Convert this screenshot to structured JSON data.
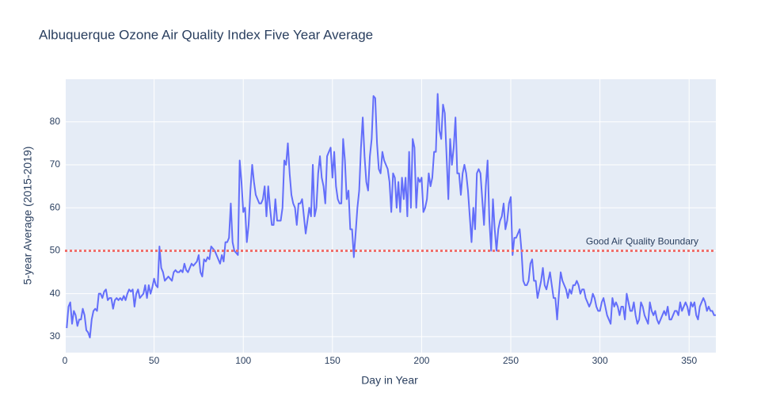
{
  "chart_data": {
    "type": "line",
    "title": "Albuquerque Ozone Air Quality Index Five Year Average",
    "x_label": "Day in Year",
    "y_label": "5-year Average (2015-2019)",
    "color": "#636efa",
    "grid": true,
    "xlim": [
      0,
      365
    ],
    "ylim": [
      26.3,
      89.9
    ],
    "xticks": [
      0,
      50,
      100,
      150,
      200,
      250,
      300,
      350
    ],
    "yticks": [
      30,
      40,
      50,
      60,
      70,
      80
    ],
    "threshold": {
      "value": 50,
      "label": "Good Air Quality Boundary",
      "color": "#ef6f6c"
    },
    "x": [
      1,
      2,
      3,
      4,
      5,
      6,
      7,
      8,
      9,
      10,
      11,
      12,
      13,
      14,
      15,
      16,
      17,
      18,
      19,
      20,
      21,
      22,
      23,
      24,
      25,
      26,
      27,
      28,
      29,
      30,
      31,
      32,
      33,
      34,
      35,
      36,
      37,
      38,
      39,
      40,
      41,
      42,
      43,
      44,
      45,
      46,
      47,
      48,
      49,
      50,
      51,
      52,
      53,
      54,
      55,
      56,
      57,
      58,
      59,
      60,
      61,
      62,
      63,
      64,
      65,
      66,
      67,
      68,
      69,
      70,
      71,
      72,
      73,
      74,
      75,
      76,
      77,
      78,
      79,
      80,
      81,
      82,
      83,
      84,
      85,
      86,
      87,
      88,
      89,
      90,
      91,
      92,
      93,
      94,
      95,
      96,
      97,
      98,
      99,
      100,
      101,
      102,
      103,
      104,
      105,
      106,
      107,
      108,
      109,
      110,
      111,
      112,
      113,
      114,
      115,
      116,
      117,
      118,
      119,
      120,
      121,
      122,
      123,
      124,
      125,
      126,
      127,
      128,
      129,
      130,
      131,
      132,
      133,
      134,
      135,
      136,
      137,
      138,
      139,
      140,
      141,
      142,
      143,
      144,
      145,
      146,
      147,
      148,
      149,
      150,
      151,
      152,
      153,
      154,
      155,
      156,
      157,
      158,
      159,
      160,
      161,
      162,
      163,
      164,
      165,
      166,
      167,
      168,
      169,
      170,
      171,
      172,
      173,
      174,
      175,
      176,
      177,
      178,
      179,
      180,
      181,
      182,
      183,
      184,
      185,
      186,
      187,
      188,
      189,
      190,
      191,
      192,
      193,
      194,
      195,
      196,
      197,
      198,
      199,
      200,
      201,
      202,
      203,
      204,
      205,
      206,
      207,
      208,
      209,
      210,
      211,
      212,
      213,
      214,
      215,
      216,
      217,
      218,
      219,
      220,
      221,
      222,
      223,
      224,
      225,
      226,
      227,
      228,
      229,
      230,
      231,
      232,
      233,
      234,
      235,
      236,
      237,
      238,
      239,
      240,
      241,
      242,
      243,
      244,
      245,
      246,
      247,
      248,
      249,
      250,
      251,
      252,
      253,
      254,
      255,
      256,
      257,
      258,
      259,
      260,
      261,
      262,
      263,
      264,
      265,
      266,
      267,
      268,
      269,
      270,
      271,
      272,
      273,
      274,
      275,
      276,
      277,
      278,
      279,
      280,
      281,
      282,
      283,
      284,
      285,
      286,
      287,
      288,
      289,
      290,
      291,
      292,
      293,
      294,
      295,
      296,
      297,
      298,
      299,
      300,
      301,
      302,
      303,
      304,
      305,
      306,
      307,
      308,
      309,
      310,
      311,
      312,
      313,
      314,
      315,
      316,
      317,
      318,
      319,
      320,
      321,
      322,
      323,
      324,
      325,
      326,
      327,
      328,
      329,
      330,
      331,
      332,
      333,
      334,
      335,
      336,
      337,
      338,
      339,
      340,
      341,
      342,
      343,
      344,
      345,
      346,
      347,
      348,
      349,
      350,
      351,
      352,
      353,
      354,
      355,
      356,
      357,
      358,
      359,
      360,
      361,
      362,
      363,
      364,
      365
    ],
    "values": [
      32,
      37,
      38,
      33,
      36,
      35,
      32.5,
      34,
      34,
      36.5,
      35,
      31.5,
      31,
      29.8,
      34,
      36,
      36.5,
      36,
      40,
      40,
      39,
      40.5,
      41,
      38.5,
      39,
      39,
      36.5,
      38.5,
      39,
      38.5,
      39,
      38.5,
      39.5,
      38.5,
      40,
      41,
      40.5,
      41,
      37,
      40,
      41,
      39,
      39.5,
      40,
      42,
      39,
      42,
      40,
      41.5,
      43.5,
      42,
      41.5,
      51,
      46,
      45,
      43,
      43.5,
      44,
      43.5,
      43,
      45,
      45.5,
      45,
      45,
      45.5,
      45,
      47,
      45.5,
      45,
      46,
      47,
      46.5,
      47,
      47.5,
      49,
      45,
      44,
      48,
      47.5,
      48.5,
      48,
      51,
      50.5,
      50,
      49,
      48,
      47,
      49,
      47.5,
      52,
      52,
      53,
      61,
      52,
      50,
      49.5,
      49,
      71,
      66,
      59,
      60,
      52,
      56,
      64,
      70,
      66,
      63,
      62,
      61,
      61,
      62,
      65,
      58,
      65,
      60,
      56,
      56,
      62,
      57,
      57,
      57,
      60,
      71,
      70,
      75,
      68,
      63,
      61,
      60,
      56,
      61,
      61,
      62,
      58,
      54,
      57,
      60,
      58,
      70,
      58,
      60,
      68,
      72,
      67,
      65,
      61,
      72,
      73,
      74,
      67,
      73,
      65,
      62,
      61,
      61,
      76,
      71,
      62,
      64,
      55,
      55,
      48.5,
      54,
      60,
      64,
      74,
      81,
      72,
      66,
      64,
      72,
      76,
      86,
      85.5,
      75,
      69,
      68,
      73,
      71,
      70,
      69,
      66,
      59,
      68,
      67,
      60,
      66,
      59,
      67,
      62,
      67,
      58,
      73,
      60,
      76,
      74,
      60,
      67,
      66,
      67,
      59,
      60,
      62,
      68,
      65,
      67,
      73,
      73,
      86.5,
      78,
      76,
      84,
      82,
      72,
      62,
      76,
      70,
      74,
      81,
      68,
      68,
      63,
      68,
      70,
      68,
      64,
      58,
      52,
      60,
      55,
      68,
      69,
      68,
      62,
      56,
      65,
      71,
      57,
      50,
      62,
      55,
      50,
      55,
      57,
      58,
      61,
      55,
      57,
      61,
      62.5,
      49,
      53,
      53,
      54,
      55,
      50,
      43,
      42,
      42,
      43,
      47,
      48,
      43,
      43,
      39,
      41,
      43,
      46,
      42,
      41,
      43,
      45,
      42,
      39,
      39,
      34,
      40,
      45,
      43,
      42,
      41,
      39,
      41,
      40,
      42,
      42,
      43,
      42,
      40,
      41,
      41,
      39,
      38,
      37,
      38,
      40,
      39,
      37,
      36,
      36,
      38,
      39,
      37,
      35,
      34,
      33,
      39,
      37,
      38,
      37,
      35,
      37,
      37,
      34,
      40,
      38,
      36,
      36,
      38,
      35,
      33,
      34,
      38,
      37,
      35,
      34,
      33,
      38,
      36,
      35,
      36,
      34,
      33,
      34,
      35,
      36,
      35,
      37,
      34,
      34,
      35,
      36,
      36,
      35,
      38,
      36,
      37,
      38,
      37,
      35,
      38,
      37,
      38,
      35,
      34,
      37,
      38,
      39,
      38,
      36,
      37,
      36,
      36,
      35,
      35
    ]
  }
}
